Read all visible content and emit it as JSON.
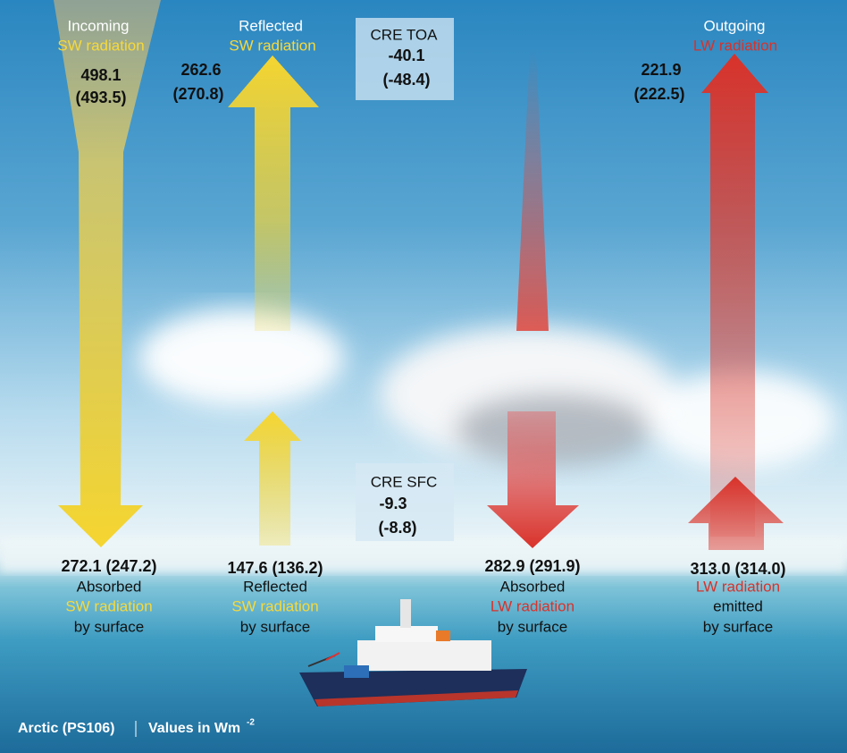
{
  "top": [
    {
      "heading": "Incoming",
      "subheading": "SW radiation",
      "value": "498.1",
      "value_prev": "(493.5)"
    },
    {
      "heading": "Reflected",
      "subheading": "SW radiation",
      "value": "262.6",
      "value_prev": "(270.8)"
    },
    {
      "heading": "Outgoing",
      "subheading": "LW radiation",
      "value": "221.9",
      "value_prev": "(222.5)"
    }
  ],
  "cre_toa": {
    "label": "CRE TOA",
    "value": "-40.1",
    "value_prev": "(-48.4)"
  },
  "cre_sfc": {
    "label": "CRE SFC",
    "value": "-9.3",
    "value_prev": "(-8.8)"
  },
  "surface": [
    {
      "value": "272.1 (247.2)",
      "line1": "Absorbed",
      "line2": "SW radiation",
      "line3": "by surface"
    },
    {
      "value": "147.6 (136.2)",
      "line1": "Reflected",
      "line2": "SW radiation",
      "line3": "by surface"
    },
    {
      "value": "282.9 (291.9)",
      "line1": "Absorbed",
      "line2": "LW radiation",
      "line3": "by surface"
    },
    {
      "value": "313.0 (314.0)",
      "line1": "LW radiation",
      "line2": "emitted",
      "line3": "by surface"
    }
  ],
  "footer": {
    "campaign": "Arctic (PS106)",
    "units": "Values in Wm",
    "units_exp": "-2"
  }
}
